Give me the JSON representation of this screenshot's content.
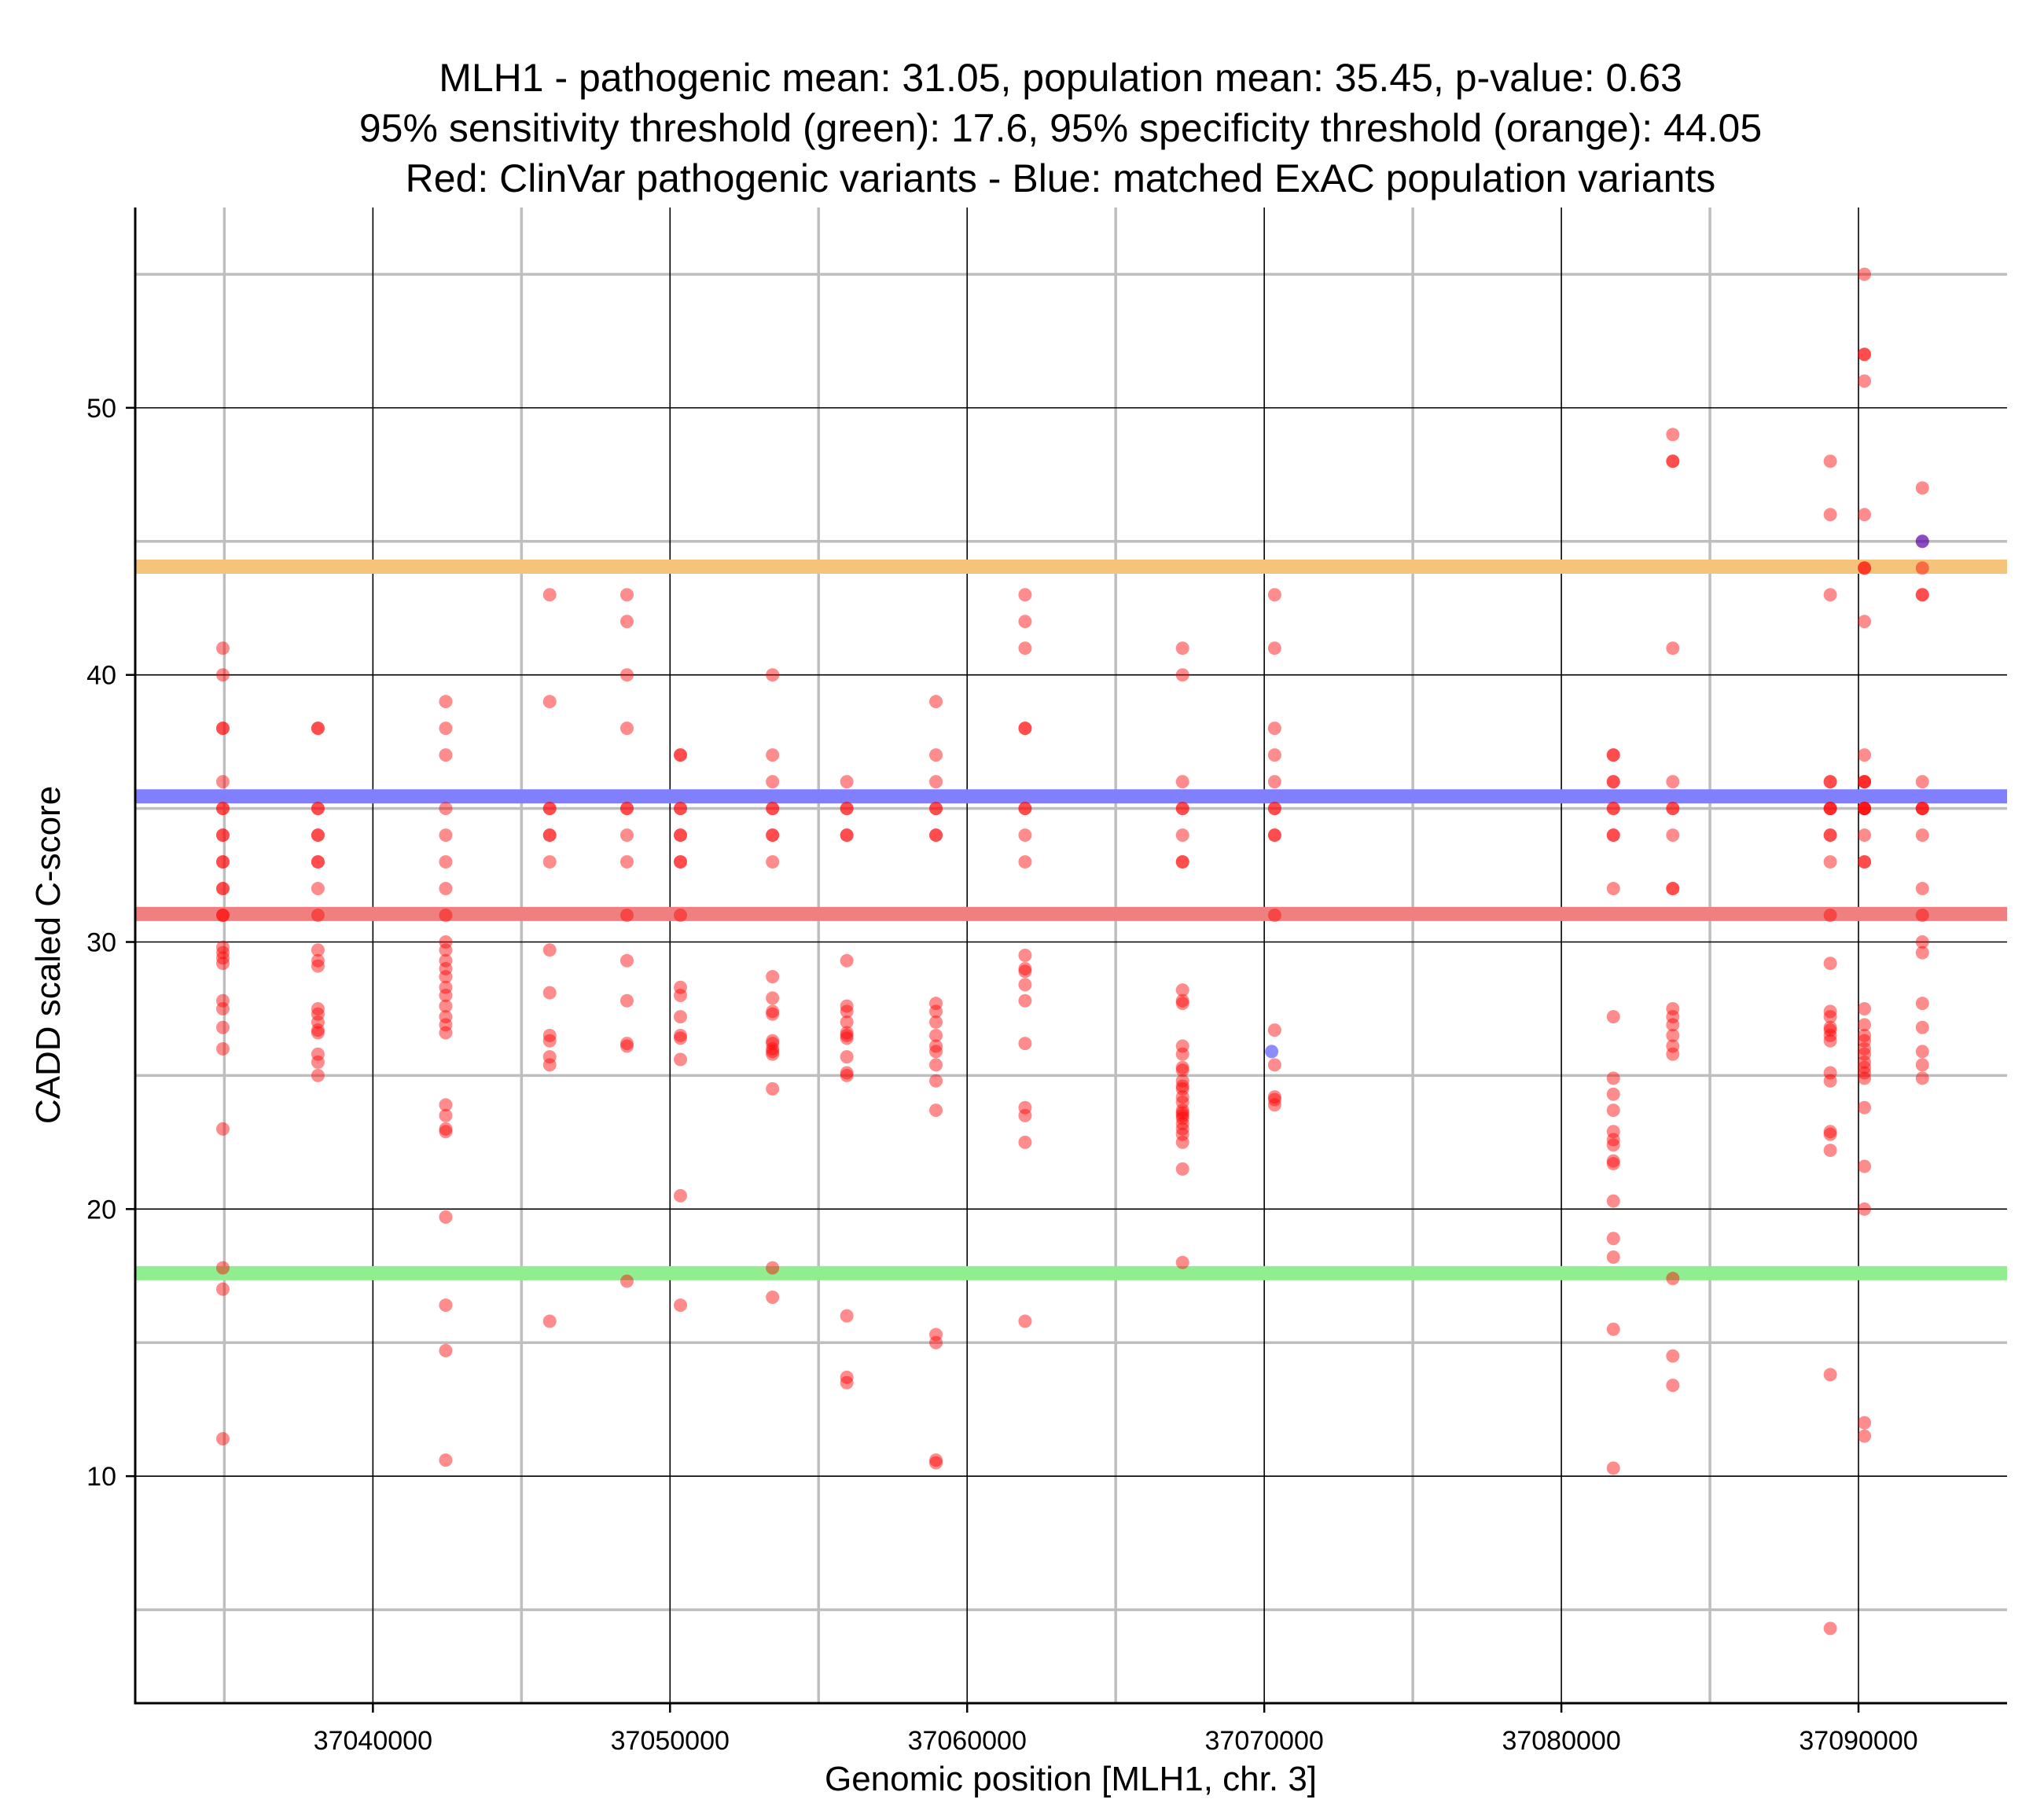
{
  "chart_data": {
    "type": "scatter",
    "title_lines": [
      "MLH1 - pathogenic mean: 31.05, population mean: 35.45, p-value: 0.63",
      "95% sensitivity threshold (green): 17.6, 95% specificity threshold (orange): 44.05",
      "Red: ClinVar pathogenic variants - Blue: matched ExAC population variants"
    ],
    "xlabel": "Genomic position [MLH1, chr. 3]",
    "ylabel": "CADD scaled C-score",
    "xlim": [
      37032000,
      37095000
    ],
    "ylim": [
      1.5,
      57.5
    ],
    "x_ticks": [
      37040000,
      37050000,
      37060000,
      37070000,
      37080000,
      37090000
    ],
    "x_tick_labels": [
      "37040000",
      "37050000",
      "37060000",
      "37070000",
      "37080000",
      "37090000"
    ],
    "y_ticks": [
      10,
      20,
      30,
      40,
      50
    ],
    "y_tick_labels": [
      "10",
      "20",
      "30",
      "40",
      "50"
    ],
    "x_minor_ticks": [
      37035000,
      37045000,
      37055000,
      37065000,
      37075000,
      37085000
    ],
    "y_minor_ticks": [
      5,
      15,
      25,
      35,
      45,
      55
    ],
    "colors": {
      "pathogenic": "#ff0000",
      "population": "#0000ff",
      "pathogenic_mean": "#f08080",
      "population_mean": "#8080ff",
      "sensitivity_threshold": "#90ee90",
      "specificity_threshold": "#f5c47a",
      "major_grid": "#000000",
      "minor_grid": "#bebebe"
    },
    "reference_lines": [
      {
        "name": "specificity-threshold",
        "value": 44.05,
        "color": "#f5c47a"
      },
      {
        "name": "population-mean",
        "value": 35.45,
        "color": "#8080ff"
      },
      {
        "name": "pathogenic-mean",
        "value": 31.05,
        "color": "#f08080"
      },
      {
        "name": "sensitivity-threshold",
        "value": 17.6,
        "color": "#90ee90"
      }
    ],
    "series": [
      {
        "name": "ClinVar pathogenic variants",
        "color": "#ff0000",
        "groups": [
          {
            "x": 37034950,
            "y": [
              41,
              40,
              38,
              38,
              36,
              35,
              35,
              34,
              34,
              33,
              33,
              32,
              32,
              31,
              31,
              29.8,
              29.6,
              29.4,
              29.2,
              27.8,
              27.5,
              26.8,
              26,
              23,
              17.8,
              17,
              11.4
            ]
          },
          {
            "x": 37038150,
            "y": [
              38,
              38,
              35,
              35,
              34,
              34,
              33,
              33,
              32,
              31,
              29.7,
              29.3,
              29.1,
              27.5,
              27.3,
              27,
              26.7,
              26.6,
              25.8,
              25.5,
              25
            ]
          },
          {
            "x": 37042450,
            "y": [
              39,
              38,
              37,
              35,
              34,
              33,
              32,
              31,
              30,
              29.7,
              29.3,
              29,
              28.7,
              28.3,
              28,
              27.6,
              27.2,
              26.9,
              26.6,
              23.9,
              23.5,
              23,
              22.9,
              19.7,
              16.4,
              14.7,
              10.6
            ]
          },
          {
            "x": 37045950,
            "y": [
              43,
              39,
              35,
              35,
              34,
              34,
              33,
              29.7,
              28.1,
              26.5,
              26.3,
              25.7,
              25.4,
              15.8
            ]
          },
          {
            "x": 37048550,
            "y": [
              43,
              42,
              40,
              38,
              35,
              35,
              34,
              33,
              31,
              29.3,
              27.8,
              26.2,
              26.1,
              17.3
            ]
          },
          {
            "x": 37050350,
            "y": [
              37,
              37,
              35,
              35,
              34,
              34,
              33,
              33,
              31,
              28.3,
              28,
              27.2,
              26.5,
              26.4,
              25.6,
              20.5,
              16.4
            ]
          },
          {
            "x": 37053450,
            "y": [
              40,
              37,
              36,
              35,
              35,
              34,
              34,
              33,
              28.7,
              27.9,
              27.4,
              27.3,
              26.3,
              26.2,
              26,
              25.9,
              25.8,
              24.5,
              17.8,
              16.7
            ]
          },
          {
            "x": 37055950,
            "y": [
              36,
              35,
              35,
              34,
              34,
              29.3,
              27.6,
              27.4,
              27,
              26.6,
              26.5,
              26.4,
              25.7,
              25.1,
              25,
              16,
              13.7,
              13.5
            ]
          },
          {
            "x": 37058950,
            "y": [
              39,
              37,
              36,
              35,
              35,
              34,
              34,
              27.7,
              27.4,
              27,
              26.5,
              26.1,
              25.9,
              25.4,
              24.8,
              23.7,
              15.3,
              15,
              10.6,
              10.5
            ]
          },
          {
            "x": 37061950,
            "y": [
              43,
              42,
              41,
              38,
              38,
              35,
              35,
              34,
              33,
              29.5,
              29,
              28.9,
              28.4,
              27.8,
              26.2,
              23.8,
              23.5,
              22.5,
              15.8
            ]
          },
          {
            "x": 37067250,
            "y": [
              41,
              40,
              36,
              35,
              35,
              34,
              33,
              33,
              28.2,
              27.8,
              27.7,
              26.1,
              25.8,
              25.3,
              25.2,
              24.8,
              24.6,
              24.5,
              24.2,
              24,
              23.7,
              23.6,
              23.5,
              23.4,
              23.2,
              23,
              22.8,
              22.5,
              21.5,
              18
            ]
          },
          {
            "x": 37070350,
            "y": [
              43,
              41,
              38,
              37,
              36,
              35,
              35,
              34,
              34,
              31,
              26.7,
              25.4,
              24.2,
              24.1,
              23.9
            ]
          },
          {
            "x": 37081750,
            "y": [
              37,
              37,
              36,
              36,
              35,
              35,
              34,
              34,
              32,
              27.2,
              24.9,
              24.3,
              23.7,
              22.9,
              22.6,
              22.4,
              21.8,
              21.7,
              20.3,
              18.9,
              18.2,
              15.5,
              10.3
            ]
          },
          {
            "x": 37083750,
            "y": [
              49,
              48,
              48,
              41,
              36,
              35,
              35,
              34,
              32,
              32,
              27.5,
              27.2,
              26.9,
              26.5,
              26.1,
              25.8,
              17.4,
              14.5,
              13.4
            ]
          },
          {
            "x": 37089050,
            "y": [
              48,
              46,
              43,
              36,
              36,
              35,
              35,
              35,
              34,
              34,
              33,
              31,
              29.2,
              27.4,
              27.2,
              26.8,
              26.7,
              26.5,
              26.3,
              25.1,
              24.8,
              22.9,
              22.8,
              22.2,
              13.8,
              4.3
            ]
          },
          {
            "x": 37090200,
            "y": [
              55,
              52,
              52,
              51,
              46,
              44,
              44,
              42,
              37,
              36,
              36,
              36,
              35,
              35,
              35,
              35,
              34,
              33,
              33,
              27.5,
              26.9,
              26.5,
              26.3,
              26,
              25.8,
              25.5,
              25.3,
              25.1,
              24.9,
              23.8,
              21.6,
              20,
              12,
              11.5
            ]
          },
          {
            "x": 37092150,
            "y": [
              47,
              45,
              44,
              43,
              43,
              36,
              35,
              35,
              35,
              34,
              32,
              31,
              30,
              29.6,
              27.7,
              26.8,
              25.9,
              25.4,
              24.9
            ]
          }
        ]
      },
      {
        "name": "matched ExAC population variants",
        "color": "#0000ff",
        "points": [
          {
            "x": 37070250,
            "y": 25.9
          },
          {
            "x": 37092150,
            "y": 45
          }
        ]
      }
    ]
  }
}
